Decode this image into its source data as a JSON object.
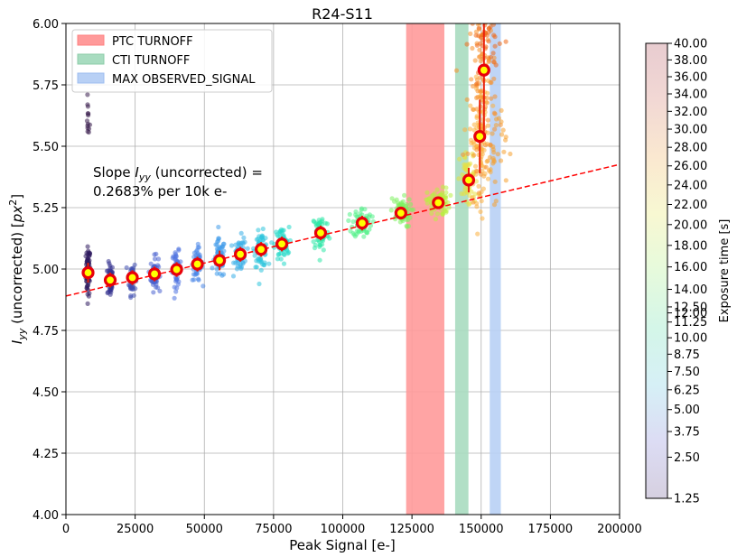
{
  "chart_data": {
    "type": "scatter",
    "title": "R24-S11",
    "xlabel": "Peak Signal [e-]",
    "ylabel_base": "I",
    "ylabel_sub": "yy",
    "ylabel_mid": " (uncorrected) [",
    "ylabel_unit": "px",
    "ylabel_sup": "2",
    "ylabel_end": "]",
    "xlim": [
      0,
      200000
    ],
    "ylim": [
      4.0,
      6.0
    ],
    "xticks": [
      0,
      25000,
      50000,
      75000,
      100000,
      125000,
      150000,
      175000,
      200000
    ],
    "yticks": [
      "4.00",
      "4.25",
      "4.50",
      "4.75",
      "5.00",
      "5.25",
      "5.50",
      "5.75",
      "6.00"
    ],
    "grid": true,
    "annotation": {
      "line1_pre": "Slope ",
      "line1_var": "I",
      "line1_sub": "yy",
      "line1_post": " (uncorrected) =",
      "line2": "0.2683% per 10k e-"
    },
    "fit_line": {
      "x": [
        0,
        200000
      ],
      "y": [
        4.89,
        5.426
      ],
      "color": "#ff0000",
      "style": "dashed"
    },
    "legend": {
      "position": "top-left",
      "entries": [
        {
          "label": "PTC TURNOFF",
          "color": "#ff9a9a"
        },
        {
          "label": "CTI TURNOFF",
          "color": "#a8dcc0"
        },
        {
          "label": "MAX OBSERVED_SIGNAL",
          "color": "#b8d0f5"
        }
      ]
    },
    "vspans": [
      {
        "name": "PTC TURNOFF",
        "x0": 122900,
        "x1": 136700,
        "color": "#ff9a9a"
      },
      {
        "name": "CTI TURNOFF",
        "x0": 140600,
        "x1": 145400,
        "color": "#a8dcc0"
      },
      {
        "name": "MAX OBSERVED_SIGNAL",
        "x0": 153100,
        "x1": 157100,
        "color": "#b8d0f5"
      }
    ],
    "binned_means": [
      {
        "x": 8000,
        "y": 4.985,
        "err": 0.04
      },
      {
        "x": 16000,
        "y": 4.955,
        "err": 0.03
      },
      {
        "x": 24000,
        "y": 4.965,
        "err": 0.03
      },
      {
        "x": 32000,
        "y": 4.98,
        "err": 0.03
      },
      {
        "x": 40000,
        "y": 4.998,
        "err": 0.03
      },
      {
        "x": 47500,
        "y": 5.02,
        "err": 0.03
      },
      {
        "x": 55500,
        "y": 5.035,
        "err": 0.04
      },
      {
        "x": 63000,
        "y": 5.06,
        "err": 0.03
      },
      {
        "x": 70500,
        "y": 5.08,
        "err": 0.03
      },
      {
        "x": 78000,
        "y": 5.102,
        "err": 0.03
      },
      {
        "x": 92000,
        "y": 5.147,
        "err": 0.03
      },
      {
        "x": 107000,
        "y": 5.187,
        "err": 0.03
      },
      {
        "x": 121000,
        "y": 5.228,
        "err": 0.02
      },
      {
        "x": 134500,
        "y": 5.27,
        "err": 0.02
      },
      {
        "x": 145500,
        "y": 5.362,
        "err": 0.05
      },
      {
        "x": 149500,
        "y": 5.54,
        "err": 0.15
      },
      {
        "x": 151000,
        "y": 5.81,
        "err": 0.25
      }
    ],
    "clusters": [
      {
        "x": 8000,
        "y": 4.99,
        "sx": 400,
        "sy": 0.05,
        "color": "#2e1a5e",
        "n": 70
      },
      {
        "x": 8000,
        "y": 5.61,
        "sx": 300,
        "sy": 0.04,
        "color": "#3b1f4f",
        "n": 14
      },
      {
        "x": 16000,
        "y": 4.955,
        "sx": 500,
        "sy": 0.035,
        "color": "#35338f",
        "n": 55
      },
      {
        "x": 24000,
        "y": 4.965,
        "sx": 600,
        "sy": 0.035,
        "color": "#3f4fb0",
        "n": 55
      },
      {
        "x": 32000,
        "y": 4.98,
        "sx": 700,
        "sy": 0.035,
        "color": "#4b63cf",
        "n": 55
      },
      {
        "x": 40000,
        "y": 5.0,
        "sx": 800,
        "sy": 0.035,
        "color": "#4f72e0",
        "n": 55
      },
      {
        "x": 47500,
        "y": 5.02,
        "sx": 900,
        "sy": 0.035,
        "color": "#4a86e8",
        "n": 55
      },
      {
        "x": 55500,
        "y": 5.04,
        "sx": 1000,
        "sy": 0.04,
        "color": "#3f9aea",
        "n": 60
      },
      {
        "x": 63000,
        "y": 5.06,
        "sx": 1100,
        "sy": 0.035,
        "color": "#38aee8",
        "n": 60
      },
      {
        "x": 70500,
        "y": 5.08,
        "sx": 1200,
        "sy": 0.035,
        "color": "#2fc4dc",
        "n": 60
      },
      {
        "x": 78000,
        "y": 5.1,
        "sx": 1300,
        "sy": 0.035,
        "color": "#25d8c8",
        "n": 60
      },
      {
        "x": 92000,
        "y": 5.15,
        "sx": 1500,
        "sy": 0.04,
        "color": "#2fe8a8",
        "n": 65
      },
      {
        "x": 107000,
        "y": 5.19,
        "sx": 1700,
        "sy": 0.03,
        "color": "#52f088",
        "n": 65
      },
      {
        "x": 121000,
        "y": 5.23,
        "sx": 1900,
        "sy": 0.03,
        "color": "#7ef060",
        "n": 65
      },
      {
        "x": 134500,
        "y": 5.27,
        "sx": 2000,
        "sy": 0.03,
        "color": "#b8f040",
        "n": 65
      },
      {
        "x": 145500,
        "y": 5.36,
        "sx": 1600,
        "sy": 0.06,
        "color": "#e8e040",
        "n": 60
      },
      {
        "x": 149500,
        "y": 5.52,
        "sx": 1800,
        "sy": 0.12,
        "color": "#fbb040",
        "n": 90
      },
      {
        "x": 150500,
        "y": 5.78,
        "sx": 2500,
        "sy": 0.18,
        "color": "#f7902a",
        "n": 110
      },
      {
        "x": 152500,
        "y": 5.93,
        "sx": 3200,
        "sy": 0.06,
        "color": "#ee6a1a",
        "n": 40
      },
      {
        "x": 155000,
        "y": 5.5,
        "sx": 2000,
        "sy": 0.1,
        "color": "#f5a030",
        "n": 30
      }
    ],
    "colorbar": {
      "label": "Exposure time [s]",
      "min": 1.25,
      "max": 40.0,
      "ticks": [
        "1.25",
        "2.50",
        "3.75",
        "5.00",
        "6.25",
        "7.50",
        "8.75",
        "10.00",
        "11.25",
        "12.00",
        "12.50",
        "14.00",
        "16.00",
        "18.00",
        "20.00",
        "22.00",
        "24.00",
        "26.00",
        "28.00",
        "30.00",
        "32.00",
        "34.00",
        "36.00",
        "38.00",
        "40.00"
      ],
      "colors": [
        "#d6d0e0",
        "#dcdcf4",
        "#d6f0f6",
        "#d4f6e8",
        "#e6fadc",
        "#f8f8d2",
        "#fae8d0",
        "#f2d8d4",
        "#e8ccd0"
      ]
    }
  }
}
